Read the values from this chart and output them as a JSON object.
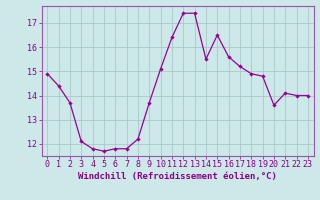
{
  "x": [
    0,
    1,
    2,
    3,
    4,
    5,
    6,
    7,
    8,
    9,
    10,
    11,
    12,
    13,
    14,
    15,
    16,
    17,
    18,
    19,
    20,
    21,
    22,
    23
  ],
  "y": [
    14.9,
    14.4,
    13.7,
    12.1,
    11.8,
    11.7,
    11.8,
    11.8,
    12.2,
    13.7,
    15.1,
    16.4,
    17.4,
    17.4,
    15.5,
    16.5,
    15.6,
    15.2,
    14.9,
    14.8,
    13.6,
    14.1,
    14.0,
    14.0
  ],
  "line_color": "#990099",
  "marker": "D",
  "marker_size": 2.2,
  "bg_color": "#cce8e8",
  "grid_color": "#aac8c8",
  "xlabel": "Windchill (Refroidissement éolien,°C)",
  "ylim": [
    11.5,
    17.7
  ],
  "yticks": [
    12,
    13,
    14,
    15,
    16,
    17
  ],
  "xticks": [
    0,
    1,
    2,
    3,
    4,
    5,
    6,
    7,
    8,
    9,
    10,
    11,
    12,
    13,
    14,
    15,
    16,
    17,
    18,
    19,
    20,
    21,
    22,
    23
  ],
  "label_fontsize": 6.5,
  "tick_fontsize": 6.0,
  "spine_color": "#9955aa",
  "text_color": "#880088"
}
